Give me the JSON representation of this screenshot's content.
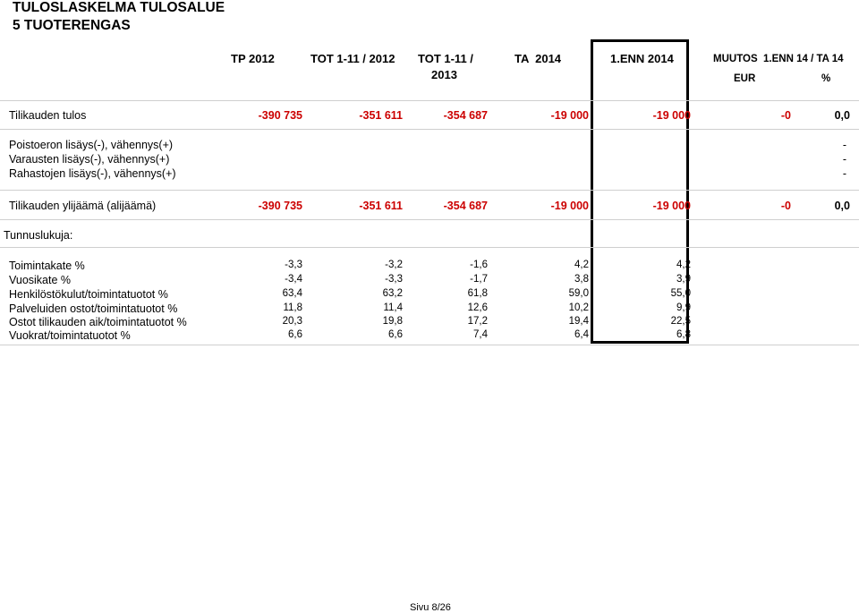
{
  "document": {
    "title_line1": "TULOSLASKELMA TULOSALUE",
    "title_line2": "5 TUOTERENGAS"
  },
  "columns": {
    "tp2012": "TP 2012",
    "tot2012": "TOT 1-11 / 2012",
    "tot2013_a": "TOT 1-11 /",
    "tot2013_b": "2013",
    "ta2014": "TA  2014",
    "enn2014": "1.ENN 2014",
    "muutos": "MUUTOS  1.ENN 14 / TA 14",
    "eur": "EUR",
    "pct": "%"
  },
  "rows": {
    "tilikauden_tulos": {
      "label": "Tilikauden tulos",
      "values": [
        "-390 735",
        "-351 611",
        "-354 687",
        "-19 000",
        "-19 000",
        "-0",
        "0,0"
      ]
    },
    "poistoeron": {
      "label": "Poistoeron lisäys(-), vähennys(+)",
      "pct": "-"
    },
    "varausten": {
      "label": "Varausten lisäys(-), vähennys(+)",
      "pct": "-"
    },
    "rahastojen": {
      "label": "Rahastojen lisäys(-), vähennys(+)",
      "pct": "-"
    },
    "ylijaama": {
      "label": "Tilikauden ylijäämä (alijäämä)",
      "values": [
        "-390 735",
        "-351 611",
        "-354 687",
        "-19 000",
        "-19 000",
        "-0",
        "0,0"
      ]
    }
  },
  "tunnusluvut": {
    "heading": "Tunnuslukuja:",
    "rows": [
      {
        "label": "Toimintakate %",
        "values": [
          "-3,3",
          "-3,2",
          "-1,6",
          "4,2",
          "4,2"
        ]
      },
      {
        "label": "Vuosikate %",
        "values": [
          "-3,4",
          "-3,3",
          "-1,7",
          "3,8",
          "3,9"
        ]
      },
      {
        "label": "Henkilöstökulut/toimintatuotot %",
        "values": [
          "63,4",
          "63,2",
          "61,8",
          "59,0",
          "55,0"
        ]
      },
      {
        "label": "Palveluiden ostot/toimintatuotot %",
        "values": [
          "11,8",
          "11,4",
          "12,6",
          "10,2",
          "9,9"
        ]
      },
      {
        "label": "Ostot tilikauden aik/toimintatuotot %",
        "values": [
          "20,3",
          "19,8",
          "17,2",
          "19,4",
          "22,5"
        ]
      },
      {
        "label": "Vuokrat/toimintatuotot %",
        "values": [
          "6,6",
          "6,6",
          "7,4",
          "6,4",
          "6,8"
        ]
      }
    ]
  },
  "footer": {
    "page": "Sivu 8/26"
  }
}
